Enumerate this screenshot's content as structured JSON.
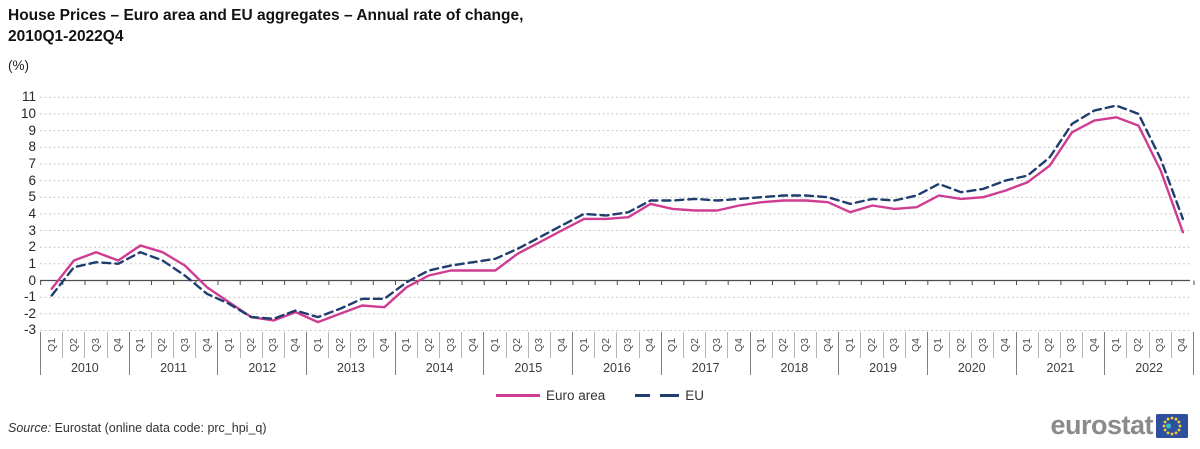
{
  "header": {
    "title_line1": "House Prices – Euro area and EU aggregates – Annual rate of change,",
    "title_line2": "2010Q1-2022Q4",
    "unit_label": "(%)"
  },
  "chart_data": {
    "type": "line",
    "title": "House Prices – Euro area and EU aggregates – Annual rate of change, 2010Q1-2022Q4",
    "xlabel": "",
    "ylabel": "(%)",
    "ylim": [
      -3,
      11
    ],
    "grid": "horizontal dashed gridlines, solid zero axis line with quarterly tick marks",
    "legend_position": "bottom-center",
    "y_ticks": [
      11,
      10,
      9,
      8,
      7,
      6,
      5,
      4,
      3,
      2,
      1,
      0,
      -1,
      -2,
      -3
    ],
    "years": [
      "2010",
      "2011",
      "2012",
      "2013",
      "2014",
      "2015",
      "2016",
      "2017",
      "2018",
      "2019",
      "2020",
      "2021",
      "2022"
    ],
    "quarter_labels": [
      "Q1",
      "Q2",
      "Q3",
      "Q4"
    ],
    "categories": [
      "2010-Q1",
      "2010-Q2",
      "2010-Q3",
      "2010-Q4",
      "2011-Q1",
      "2011-Q2",
      "2011-Q3",
      "2011-Q4",
      "2012-Q1",
      "2012-Q2",
      "2012-Q3",
      "2012-Q4",
      "2013-Q1",
      "2013-Q2",
      "2013-Q3",
      "2013-Q4",
      "2014-Q1",
      "2014-Q2",
      "2014-Q3",
      "2014-Q4",
      "2015-Q1",
      "2015-Q2",
      "2015-Q3",
      "2015-Q4",
      "2016-Q1",
      "2016-Q2",
      "2016-Q3",
      "2016-Q4",
      "2017-Q1",
      "2017-Q2",
      "2017-Q3",
      "2017-Q4",
      "2018-Q1",
      "2018-Q2",
      "2018-Q3",
      "2018-Q4",
      "2019-Q1",
      "2019-Q2",
      "2019-Q3",
      "2019-Q4",
      "2020-Q1",
      "2020-Q2",
      "2020-Q3",
      "2020-Q4",
      "2021-Q1",
      "2021-Q2",
      "2021-Q3",
      "2021-Q4",
      "2022-Q1",
      "2022-Q2",
      "2022-Q3",
      "2022-Q4"
    ],
    "series": [
      {
        "name": "Euro area",
        "style": "solid",
        "color": "#ce3d92",
        "values": [
          -0.5,
          1.2,
          1.7,
          1.2,
          2.1,
          1.7,
          0.9,
          -0.4,
          -1.3,
          -2.2,
          -2.4,
          -1.9,
          -2.5,
          -2.0,
          -1.5,
          -1.6,
          -0.4,
          0.3,
          0.6,
          0.6,
          0.6,
          1.6,
          2.3,
          3.0,
          3.7,
          3.7,
          3.8,
          4.6,
          4.3,
          4.2,
          4.2,
          4.5,
          4.7,
          4.8,
          4.8,
          4.7,
          4.1,
          4.5,
          4.3,
          4.4,
          5.1,
          4.9,
          5.0,
          5.4,
          5.9,
          6.9,
          8.9,
          9.6,
          9.8,
          9.3,
          6.6,
          2.9
        ]
      },
      {
        "name": "EU",
        "style": "dashed",
        "color": "#1f3d6d",
        "values": [
          -0.9,
          0.8,
          1.1,
          1.0,
          1.7,
          1.2,
          0.3,
          -0.8,
          -1.4,
          -2.2,
          -2.3,
          -1.8,
          -2.2,
          -1.7,
          -1.1,
          -1.1,
          -0.1,
          0.6,
          0.9,
          1.1,
          1.3,
          1.9,
          2.6,
          3.3,
          4.0,
          3.9,
          4.1,
          4.8,
          4.8,
          4.9,
          4.8,
          4.9,
          5.0,
          5.1,
          5.1,
          5.0,
          4.6,
          4.9,
          4.8,
          5.1,
          5.8,
          5.3,
          5.5,
          6.0,
          6.3,
          7.4,
          9.4,
          10.2,
          10.5,
          10.0,
          7.3,
          3.7
        ]
      }
    ]
  },
  "footer": {
    "source_prefix": "Source:",
    "source_text": " Eurostat (online data code: prc_hpi_q)"
  },
  "logo": {
    "text": "eurostat"
  },
  "colors": {
    "euro_area_line": "#ce3d92",
    "eu_line": "#1f3d6d",
    "gridline": "#c9c9c9",
    "zero_axis": "#4d4d4d",
    "eu_flag_blue": "#2e4f9e",
    "eu_flag_star": "#f8d12e"
  }
}
